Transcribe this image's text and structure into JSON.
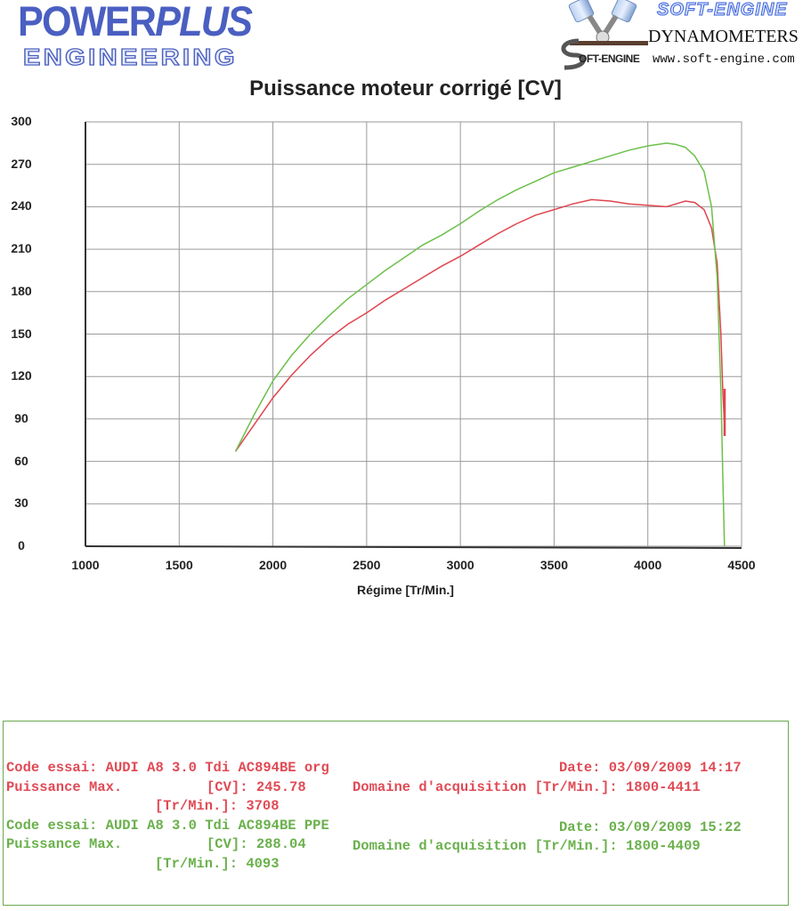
{
  "header": {
    "left_logo": {
      "line1_a": "POWER",
      "line1_b": "PLUS",
      "line2": "ENGINEERING"
    },
    "right_logo": {
      "brand": "SOFT-ENGINE",
      "subtitle": "DYNAMOMETERS",
      "url": "www.soft-engine.com",
      "small_brand": "OFT-ENGINE"
    }
  },
  "chart_data": {
    "type": "line",
    "title": "Puissance moteur corrigé [CV]",
    "xlabel": "Régime [Tr/Min.]",
    "ylabel": "",
    "xlim": [
      1000,
      4500
    ],
    "ylim": [
      0,
      300
    ],
    "x_ticks": [
      "1000",
      "1500",
      "2000",
      "2500",
      "3000",
      "3500",
      "4000",
      "4500"
    ],
    "y_ticks": [
      "0",
      "30",
      "60",
      "90",
      "120",
      "150",
      "180",
      "210",
      "240",
      "270",
      "300"
    ],
    "grid": true,
    "legend": "none (series identified in info box below chart)",
    "series": [
      {
        "name": "AUDI A8 3.0 Tdi AC894BE org",
        "color": "#e0444f",
        "x": [
          1800,
          1900,
          2000,
          2100,
          2200,
          2300,
          2400,
          2500,
          2600,
          2700,
          2800,
          2900,
          3000,
          3100,
          3200,
          3300,
          3400,
          3500,
          3600,
          3700,
          3800,
          3900,
          4000,
          4100,
          4150,
          4200,
          4250,
          4300,
          4340,
          4370,
          4390,
          4400,
          4411
        ],
        "values": [
          67,
          86,
          105,
          121,
          135,
          147,
          157,
          165,
          174,
          182,
          190,
          198,
          205,
          213,
          221,
          228,
          234,
          238,
          242,
          245,
          244,
          242,
          241,
          240,
          242,
          244,
          243,
          238,
          225,
          200,
          150,
          110,
          80
        ]
      },
      {
        "name": "AUDI A8 3.0 Tdi AC894BE PPE",
        "color": "#6cc04a",
        "x": [
          1800,
          1900,
          2000,
          2100,
          2200,
          2300,
          2400,
          2500,
          2600,
          2700,
          2800,
          2900,
          3000,
          3100,
          3200,
          3300,
          3400,
          3500,
          3600,
          3700,
          3800,
          3900,
          4000,
          4100,
          4150,
          4200,
          4250,
          4300,
          4340,
          4370,
          4390,
          4400,
          4409
        ],
        "values": [
          67,
          93,
          117,
          135,
          150,
          163,
          175,
          185,
          195,
          204,
          213,
          220,
          228,
          237,
          245,
          252,
          258,
          264,
          268,
          272,
          276,
          280,
          283,
          285,
          284,
          282,
          276,
          265,
          240,
          190,
          110,
          50,
          0
        ]
      }
    ]
  },
  "info": {
    "run1": {
      "code_label": "Code essai:",
      "code_value": "AUDI A8 3.0 Tdi AC894BE org",
      "date": "Date: 03/09/2009 14:17",
      "pmax_label": "Puissance Max.",
      "cv_label": "[CV]:",
      "cv_value": "245.78",
      "domain_label": "Domaine d'acquisition [Tr/Min.]:",
      "domain_value": "1800-4411",
      "rpm_label": "[Tr/Min.]:",
      "rpm_value": "3708",
      "color": "#e04a55"
    },
    "run2": {
      "code_label": "Code essai:",
      "code_value": "AUDI A8 3.0 Tdi AC894BE PPE",
      "date": "Date: 03/09/2009 15:22",
      "pmax_label": "Puissance Max.",
      "cv_label": "[CV]:",
      "cv_value": "288.04",
      "domain_label": "Domaine d'acquisition [Tr/Min.]:",
      "domain_value": "1800-4409",
      "rpm_label": "[Tr/Min.]:",
      "rpm_value": "4093",
      "color": "#6ab04c"
    }
  }
}
